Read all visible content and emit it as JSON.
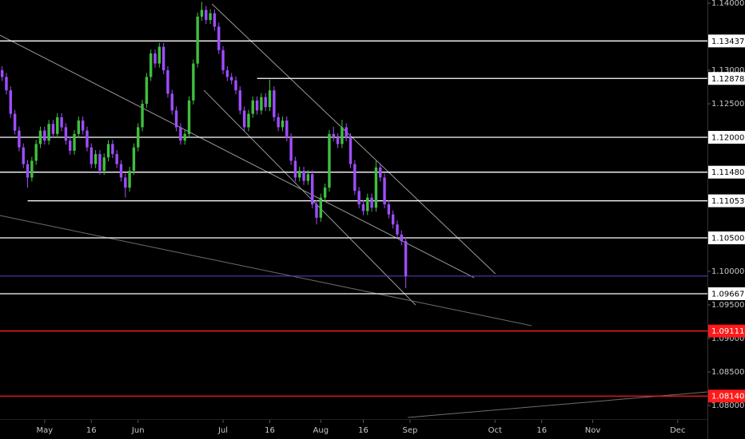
{
  "chart_data": {
    "type": "candlestick",
    "up_color": "#3fbf3f",
    "down_color": "#9f4dff",
    "xlim": [
      -0.5,
      166
    ],
    "ylim": [
      1.075,
      1.14048
    ],
    "xticks": [
      {
        "value": 10,
        "label": "May"
      },
      {
        "value": 21,
        "label": "16"
      },
      {
        "value": 32,
        "label": "Jun"
      },
      {
        "value": 52,
        "label": "Jul"
      },
      {
        "value": 63,
        "label": "16"
      },
      {
        "value": 75,
        "label": "Aug"
      },
      {
        "value": 85,
        "label": "16"
      },
      {
        "value": 96,
        "label": "Sep"
      },
      {
        "value": 116,
        "label": "Oct"
      },
      {
        "value": 127,
        "label": "16"
      },
      {
        "value": 139,
        "label": "Nov"
      },
      {
        "value": 159,
        "label": "Dec"
      }
    ],
    "yticks": [
      {
        "value": 1.14,
        "label": "1.14000"
      },
      {
        "value": 1.13,
        "label": "1.13000"
      },
      {
        "value": 1.125,
        "label": "1.12500"
      },
      {
        "value": 1.115,
        "label": "1.11500"
      },
      {
        "value": 1.11,
        "label": "1.11000"
      },
      {
        "value": 1.1,
        "label": "1.10000"
      },
      {
        "value": 1.095,
        "label": "1.09500"
      },
      {
        "value": 1.09,
        "label": "1.09000"
      },
      {
        "value": 1.085,
        "label": "1.08500"
      },
      {
        "value": 1.08,
        "label": "1.08000"
      }
    ],
    "levels": [
      {
        "price": 1.13437,
        "color": "#ffffff"
      },
      {
        "price": 1.12878,
        "color": "#ffffff",
        "from": 60
      },
      {
        "price": 1.12,
        "label": "1.12000",
        "color": "#ffffff"
      },
      {
        "price": 1.1148,
        "label": "1.11480",
        "color": "#ffffff"
      },
      {
        "price": 1.11053,
        "color": "#ffffff",
        "from": 6
      },
      {
        "price": 1.105,
        "label": "1.10500",
        "color": "#ffffff"
      },
      {
        "price": 1.09667,
        "color": "#ffffff"
      },
      {
        "price": 1.09111,
        "color": "#ff1a1a"
      },
      {
        "price": 1.0814,
        "label": "1.08140",
        "color": "#ff1a1a"
      }
    ],
    "price_line": {
      "price": 1.0993,
      "color": "#6a3fc8"
    },
    "trendlines": [
      {
        "x": [
          -0.5,
          111.1
        ],
        "y": [
          1.13524,
          1.09905
        ],
        "color": "#9a9a9a"
      },
      {
        "x": [
          49.4,
          116.1
        ],
        "y": [
          1.13988,
          1.09964
        ],
        "color": "#9a9a9a"
      },
      {
        "x": [
          47.5,
          97.3
        ],
        "y": [
          1.12702,
          1.095
        ],
        "color": "#9a9a9a"
      },
      {
        "x": [
          -0.5,
          124.6
        ],
        "y": [
          1.10833,
          1.0919
        ],
        "color": "#6e6e6e"
      },
      {
        "x": [
          95.5,
          166
        ],
        "y": [
          1.07821,
          1.08202
        ],
        "color": "#6e6e6e"
      }
    ],
    "candles": [
      [
        1.13,
        1.1306,
        1.1284,
        1.129
      ],
      [
        1.129,
        1.1296,
        1.1264,
        1.127
      ],
      [
        1.127,
        1.1276,
        1.1229,
        1.1235
      ],
      [
        1.1235,
        1.1241,
        1.1204,
        1.121
      ],
      [
        1.121,
        1.1216,
        1.1179,
        1.1185
      ],
      [
        1.1185,
        1.1191,
        1.1154,
        1.116
      ],
      [
        1.116,
        1.1166,
        1.1125,
        1.114
      ],
      [
        1.114,
        1.1171,
        1.1134,
        1.1165
      ],
      [
        1.1165,
        1.1196,
        1.1159,
        1.119
      ],
      [
        1.119,
        1.1216,
        1.1184,
        1.121
      ],
      [
        1.121,
        1.1216,
        1.1189,
        1.1195
      ],
      [
        1.1195,
        1.1226,
        1.1189,
        1.122
      ],
      [
        1.122,
        1.1226,
        1.1199,
        1.1205
      ],
      [
        1.1205,
        1.1236,
        1.1199,
        1.123
      ],
      [
        1.123,
        1.1236,
        1.1209,
        1.1215
      ],
      [
        1.1215,
        1.1221,
        1.1189,
        1.1195
      ],
      [
        1.1195,
        1.1201,
        1.1174,
        1.118
      ],
      [
        1.118,
        1.1211,
        1.1174,
        1.1205
      ],
      [
        1.1205,
        1.1231,
        1.1199,
        1.1225
      ],
      [
        1.1225,
        1.1231,
        1.1204,
        1.121
      ],
      [
        1.121,
        1.1216,
        1.1179,
        1.1185
      ],
      [
        1.1185,
        1.1191,
        1.1154,
        1.116
      ],
      [
        1.116,
        1.1181,
        1.1154,
        1.1175
      ],
      [
        1.1175,
        1.1181,
        1.1144,
        1.115
      ],
      [
        1.115,
        1.1176,
        1.1144,
        1.117
      ],
      [
        1.117,
        1.1196,
        1.1164,
        1.119
      ],
      [
        1.119,
        1.1196,
        1.1169,
        1.1175
      ],
      [
        1.1175,
        1.1181,
        1.1154,
        1.116
      ],
      [
        1.116,
        1.1166,
        1.1134,
        1.114
      ],
      [
        1.114,
        1.1146,
        1.111,
        1.1125
      ],
      [
        1.1125,
        1.1156,
        1.1119,
        1.115
      ],
      [
        1.115,
        1.1191,
        1.1144,
        1.1185
      ],
      [
        1.1185,
        1.1221,
        1.1179,
        1.1215
      ],
      [
        1.1215,
        1.1256,
        1.1209,
        1.125
      ],
      [
        1.125,
        1.1296,
        1.1244,
        1.129
      ],
      [
        1.129,
        1.1331,
        1.1284,
        1.1325
      ],
      [
        1.1325,
        1.1331,
        1.1304,
        1.131
      ],
      [
        1.131,
        1.1341,
        1.1304,
        1.1335
      ],
      [
        1.1335,
        1.1341,
        1.1294,
        1.13
      ],
      [
        1.13,
        1.1306,
        1.1259,
        1.1265
      ],
      [
        1.1265,
        1.1271,
        1.1234,
        1.124
      ],
      [
        1.124,
        1.1246,
        1.1209,
        1.1215
      ],
      [
        1.1215,
        1.1221,
        1.1189,
        1.1195
      ],
      [
        1.1195,
        1.1211,
        1.1189,
        1.1205
      ],
      [
        1.1205,
        1.1261,
        1.1199,
        1.1255
      ],
      [
        1.1255,
        1.1316,
        1.1249,
        1.131
      ],
      [
        1.131,
        1.1386,
        1.1304,
        1.138
      ],
      [
        1.138,
        1.1402,
        1.1374,
        1.139
      ],
      [
        1.139,
        1.1396,
        1.1369,
        1.1375
      ],
      [
        1.1375,
        1.1391,
        1.1369,
        1.1385
      ],
      [
        1.1385,
        1.1391,
        1.1359,
        1.1365
      ],
      [
        1.1365,
        1.1371,
        1.1324,
        1.133
      ],
      [
        1.133,
        1.1336,
        1.1294,
        1.13
      ],
      [
        1.13,
        1.1306,
        1.1284,
        1.129
      ],
      [
        1.129,
        1.1296,
        1.1279,
        1.1285
      ],
      [
        1.1285,
        1.1291,
        1.1264,
        1.127
      ],
      [
        1.127,
        1.1276,
        1.1234,
        1.124
      ],
      [
        1.124,
        1.1246,
        1.1209,
        1.1215
      ],
      [
        1.1215,
        1.1241,
        1.1209,
        1.1235
      ],
      [
        1.1235,
        1.1261,
        1.1229,
        1.1255
      ],
      [
        1.1255,
        1.1261,
        1.1234,
        1.124
      ],
      [
        1.124,
        1.1266,
        1.1234,
        1.126
      ],
      [
        1.126,
        1.1266,
        1.1239,
        1.1245
      ],
      [
        1.1245,
        1.1286,
        1.1239,
        1.127
      ],
      [
        1.127,
        1.1276,
        1.1224,
        1.123
      ],
      [
        1.123,
        1.1236,
        1.1209,
        1.1215
      ],
      [
        1.1215,
        1.1231,
        1.1209,
        1.1225
      ],
      [
        1.1225,
        1.1231,
        1.1194,
        1.12
      ],
      [
        1.12,
        1.1206,
        1.1159,
        1.1165
      ],
      [
        1.1165,
        1.1171,
        1.1134,
        1.114
      ],
      [
        1.114,
        1.1156,
        1.1134,
        1.115
      ],
      [
        1.115,
        1.1156,
        1.1129,
        1.1135
      ],
      [
        1.1135,
        1.1151,
        1.1129,
        1.1145
      ],
      [
        1.1145,
        1.1151,
        1.1094,
        1.11
      ],
      [
        1.11,
        1.1106,
        1.107,
        1.108
      ],
      [
        1.108,
        1.1116,
        1.1074,
        1.111
      ],
      [
        1.111,
        1.1131,
        1.1104,
        1.1125
      ],
      [
        1.1125,
        1.1211,
        1.1119,
        1.1205
      ],
      [
        1.1205,
        1.1216,
        1.1194,
        1.12
      ],
      [
        1.12,
        1.1206,
        1.1184,
        1.119
      ],
      [
        1.119,
        1.1226,
        1.1184,
        1.1215
      ],
      [
        1.1215,
        1.1221,
        1.1194,
        1.12
      ],
      [
        1.12,
        1.1206,
        1.1154,
        1.116
      ],
      [
        1.116,
        1.1166,
        1.1114,
        1.112
      ],
      [
        1.112,
        1.1126,
        1.1094,
        1.11
      ],
      [
        1.11,
        1.1106,
        1.1084,
        1.109
      ],
      [
        1.109,
        1.1116,
        1.1084,
        1.111
      ],
      [
        1.111,
        1.1116,
        1.1089,
        1.1095
      ],
      [
        1.1095,
        1.1165,
        1.1089,
        1.1155
      ],
      [
        1.1155,
        1.1161,
        1.1134,
        1.114
      ],
      [
        1.114,
        1.1146,
        1.1094,
        1.11
      ],
      [
        1.11,
        1.1106,
        1.1079,
        1.1085
      ],
      [
        1.1085,
        1.1091,
        1.1064,
        1.107
      ],
      [
        1.107,
        1.1076,
        1.1049,
        1.1055
      ],
      [
        1.1055,
        1.1061,
        1.1039,
        1.1045
      ],
      [
        1.1045,
        1.1051,
        1.0975,
        1.0993
      ]
    ]
  }
}
